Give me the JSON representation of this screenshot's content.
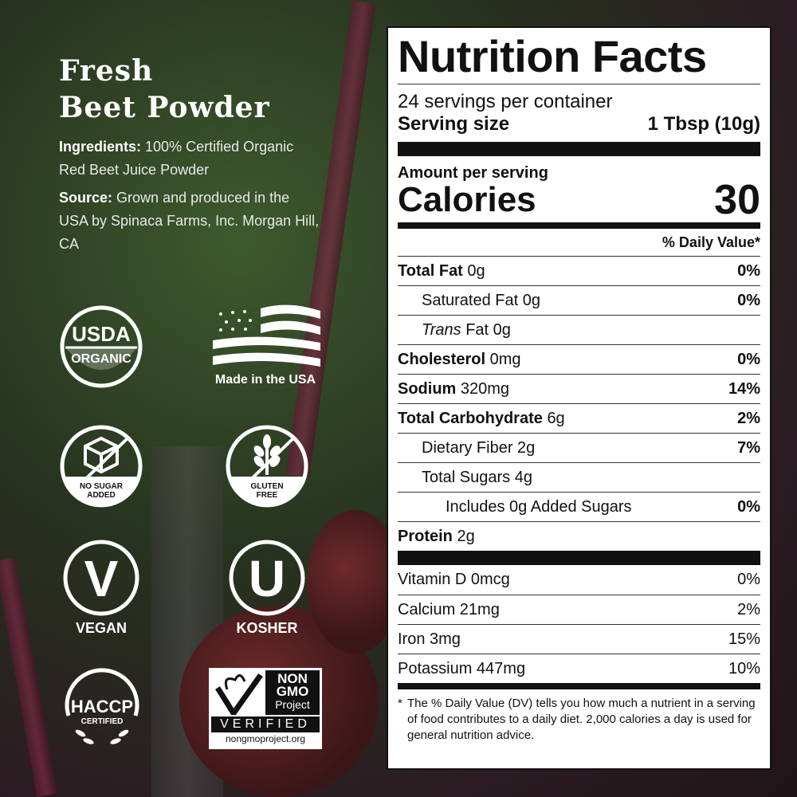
{
  "product": {
    "title_line1": "Fresh",
    "title_line2": "Beet Powder",
    "ingredients_label": "Ingredients:",
    "ingredients": "100% Certified Organic Red Beet Juice Powder",
    "source_label": "Source:",
    "source": "Grown and produced in the USA by Spinaca Farms, Inc. Morgan Hill, CA"
  },
  "badges": {
    "usda_top": "USDA",
    "usda_bottom": "ORGANIC",
    "usa": "Made in the USA",
    "nosugar1": "NO SUGAR",
    "nosugar2": "ADDED",
    "gluten1": "GLUTEN",
    "gluten2": "FREE",
    "vegan_letter": "V",
    "vegan": "VEGAN",
    "kosher_letter": "U",
    "kosher": "KOSHER",
    "haccp": "HACCP",
    "haccp_sub": "CERTIFIED",
    "nongmo1": "NON",
    "nongmo2": "GMO",
    "nongmo3": "Project",
    "nongmo_verified": "VERIFIED",
    "nongmo_url": "nongmoproject.org"
  },
  "label": {
    "title": "Nutrition Facts",
    "servings": "24 servings per container",
    "serving_size_label": "Serving size",
    "serving_size": "1 Tbsp (10g)",
    "amount_per_serving": "Amount per serving",
    "calories_label": "Calories",
    "calories": "30",
    "dv_header": "% Daily Value*",
    "nutrients": [
      {
        "name": "Total Fat",
        "amount": "0g",
        "dv": "0%",
        "bold": true,
        "indent": 0
      },
      {
        "name": "Saturated Fat",
        "amount": "0g",
        "dv": "0%",
        "bold": false,
        "indent": 1
      },
      {
        "name": "Trans",
        "name2": "Fat",
        "amount": "0g",
        "dv": "",
        "bold": false,
        "indent": 1,
        "italic": true
      },
      {
        "name": "Cholesterol",
        "amount": "0mg",
        "dv": "0%",
        "bold": true,
        "indent": 0
      },
      {
        "name": "Sodium",
        "amount": "320mg",
        "dv": "14%",
        "bold": true,
        "indent": 0
      },
      {
        "name": "Total Carbohydrate",
        "amount": "6g",
        "dv": "2%",
        "bold": true,
        "indent": 0
      },
      {
        "name": "Dietary Fiber",
        "amount": "2g",
        "dv": "7%",
        "bold": false,
        "indent": 1
      },
      {
        "name": "Total Sugars",
        "amount": "4g",
        "dv": "",
        "bold": false,
        "indent": 1
      },
      {
        "name": "Includes 0g Added Sugars",
        "amount": "",
        "dv": "0%",
        "bold": false,
        "indent": 2
      },
      {
        "name": "Protein",
        "amount": "2g",
        "dv": "",
        "bold": true,
        "indent": 0
      }
    ],
    "vitamins": [
      {
        "name": "Vitamin D 0mcg",
        "dv": "0%"
      },
      {
        "name": "Calcium 21mg",
        "dv": "2%"
      },
      {
        "name": "Iron 3mg",
        "dv": "15%"
      },
      {
        "name": "Potassium 447mg",
        "dv": "10%"
      }
    ],
    "footnote_star": "*",
    "footnote": "The % Daily Value (DV) tells you how much a nutrient in a serving of food contributes to a daily diet. 2,000 calories a day is used for general nutrition advice."
  }
}
